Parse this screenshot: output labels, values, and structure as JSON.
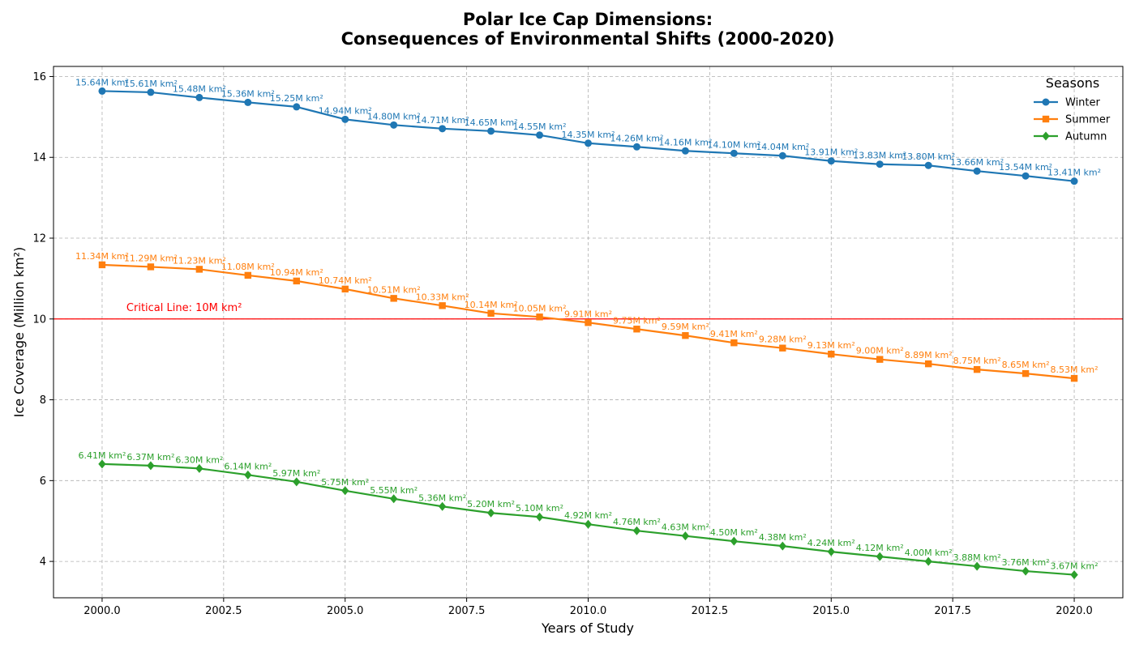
{
  "chart_data": {
    "type": "line",
    "title_line1": "Polar Ice Cap Dimensions:",
    "title_line2": "Consequences of Environmental Shifts (2000-2020)",
    "xlabel": "Years of Study",
    "ylabel": "Ice Coverage (Million km²)",
    "xlim": [
      1999,
      2021
    ],
    "ylim": [
      3.1,
      16.25
    ],
    "x_ticks": [
      2000.0,
      2002.5,
      2005.0,
      2007.5,
      2010.0,
      2012.5,
      2015.0,
      2017.5,
      2020.0
    ],
    "x_tick_labels": [
      "2000.0",
      "2002.5",
      "2005.0",
      "2007.5",
      "2010.0",
      "2012.5",
      "2015.0",
      "2017.5",
      "2020.0"
    ],
    "y_ticks": [
      4,
      6,
      8,
      10,
      12,
      14,
      16
    ],
    "y_tick_labels": [
      "4",
      "6",
      "8",
      "10",
      "12",
      "14",
      "16"
    ],
    "grid": true,
    "legend": {
      "title": "Seasons",
      "placement": "top-right"
    },
    "x": [
      2000,
      2001,
      2002,
      2003,
      2004,
      2005,
      2006,
      2007,
      2008,
      2009,
      2010,
      2011,
      2012,
      2013,
      2014,
      2015,
      2016,
      2017,
      2018,
      2019,
      2020
    ],
    "series": [
      {
        "name": "Winter",
        "color": "#1f77b4",
        "marker": "circle",
        "values": [
          15.64,
          15.61,
          15.48,
          15.36,
          15.25,
          14.94,
          14.8,
          14.71,
          14.65,
          14.55,
          14.35,
          14.26,
          14.16,
          14.1,
          14.04,
          13.91,
          13.83,
          13.8,
          13.66,
          13.54,
          13.41
        ],
        "labels": [
          "15.64M km²",
          "15.61M km²",
          "15.48M km²",
          "15.36M km²",
          "15.25M km²",
          "14.94M km²",
          "14.80M km²",
          "14.71M km²",
          "14.65M km²",
          "14.55M km²",
          "14.35M km²",
          "14.26M km²",
          "14.16M km²",
          "14.10M km²",
          "14.04M km²",
          "13.91M km²",
          "13.83M km²",
          "13.80M km²",
          "13.66M km²",
          "13.54M km²",
          "13.41M km²"
        ]
      },
      {
        "name": "Summer",
        "color": "#ff7f0e",
        "marker": "square",
        "values": [
          11.34,
          11.29,
          11.23,
          11.08,
          10.94,
          10.74,
          10.51,
          10.33,
          10.14,
          10.05,
          9.91,
          9.75,
          9.59,
          9.41,
          9.28,
          9.13,
          9.0,
          8.89,
          8.75,
          8.65,
          8.53
        ],
        "labels": [
          "11.34M km²",
          "11.29M km²",
          "11.23M km²",
          "11.08M km²",
          "10.94M km²",
          "10.74M km²",
          "10.51M km²",
          "10.33M km²",
          "10.14M km²",
          "10.05M km²",
          "9.91M km²",
          "9.75M km²",
          "9.59M km²",
          "9.41M km²",
          "9.28M km²",
          "9.13M km²",
          "9.00M km²",
          "8.89M km²",
          "8.75M km²",
          "8.65M km²",
          "8.53M km²"
        ]
      },
      {
        "name": "Autumn",
        "color": "#2ca02c",
        "marker": "diamond",
        "values": [
          6.41,
          6.37,
          6.3,
          6.14,
          5.97,
          5.75,
          5.55,
          5.36,
          5.2,
          5.1,
          4.92,
          4.76,
          4.63,
          4.5,
          4.38,
          4.24,
          4.12,
          4.0,
          3.88,
          3.76,
          3.67
        ],
        "labels": [
          "6.41M km²",
          "6.37M km²",
          "6.30M km²",
          "6.14M km²",
          "5.97M km²",
          "5.75M km²",
          "5.55M km²",
          "5.36M km²",
          "5.20M km²",
          "5.10M km²",
          "4.92M km²",
          "4.76M km²",
          "4.63M km²",
          "4.50M km²",
          "4.38M km²",
          "4.24M km²",
          "4.12M km²",
          "4.00M km²",
          "3.88M km²",
          "3.76M km²",
          "3.67M km²"
        ]
      }
    ],
    "reference_line": {
      "y": 10,
      "color": "#ff0000",
      "label": "Critical Line: 10M km²",
      "label_x": 2000.5
    }
  }
}
